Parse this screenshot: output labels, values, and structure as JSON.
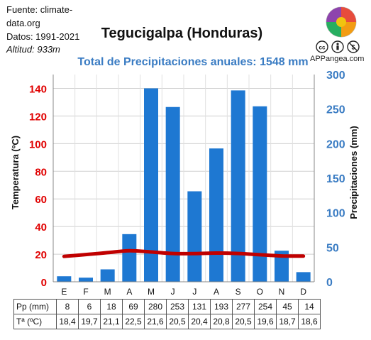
{
  "source": {
    "line1": "Fuente: climate-",
    "line2": "data.org",
    "line3": "Datos: 1991-2021",
    "altitude_label": "Altitud: ",
    "altitude_value": "933m"
  },
  "brand": "APPangea.com",
  "icons": [
    "puzzle-globe-logo-icon",
    "cc-icon",
    "by-icon",
    "nc-icon"
  ],
  "colors": {
    "bars": "#1e78d2",
    "temp_line": "#c00000",
    "left_axis": "#e00000",
    "right_axis": "#3a7cc3"
  },
  "chart_data": {
    "type": "bar",
    "title": "Tegucigalpa (Honduras)",
    "subtitle": "Total de Precipitaciones anuales: 1548 mm",
    "categories": [
      "E",
      "F",
      "M",
      "A",
      "M",
      "J",
      "J",
      "A",
      "S",
      "O",
      "N",
      "D"
    ],
    "series": [
      {
        "name": "Pp (mm)",
        "kind": "bar",
        "axis": "right",
        "values": [
          8,
          6,
          18,
          69,
          280,
          253,
          131,
          193,
          277,
          254,
          45,
          14
        ]
      },
      {
        "name": "Tª (ºC)",
        "kind": "line",
        "axis": "left",
        "values": [
          18.4,
          19.7,
          21.1,
          22.5,
          21.6,
          20.5,
          20.4,
          20.8,
          20.5,
          19.6,
          18.7,
          18.6
        ]
      }
    ],
    "ylabel_left": "Temperatura (ºC)",
    "ylabel_right": "Precipitaciones (mm)",
    "ylim_left": [
      0,
      150
    ],
    "ylim_right": [
      0,
      300
    ],
    "yticks_left": [
      0,
      20,
      40,
      60,
      80,
      100,
      120,
      140
    ],
    "yticks_right": [
      0,
      50,
      100,
      150,
      200,
      250,
      300
    ],
    "grid": true,
    "table": {
      "precip_label": "Pp (mm)",
      "precip_values": [
        "8",
        "6",
        "18",
        "69",
        "280",
        "253",
        "131",
        "193",
        "277",
        "254",
        "45",
        "14"
      ],
      "temp_label": "Tª (ºC)",
      "temp_values": [
        "18,4",
        "19,7",
        "21,1",
        "22,5",
        "21,6",
        "20,5",
        "20,4",
        "20,8",
        "20,5",
        "19,6",
        "18,7",
        "18,6"
      ]
    }
  }
}
